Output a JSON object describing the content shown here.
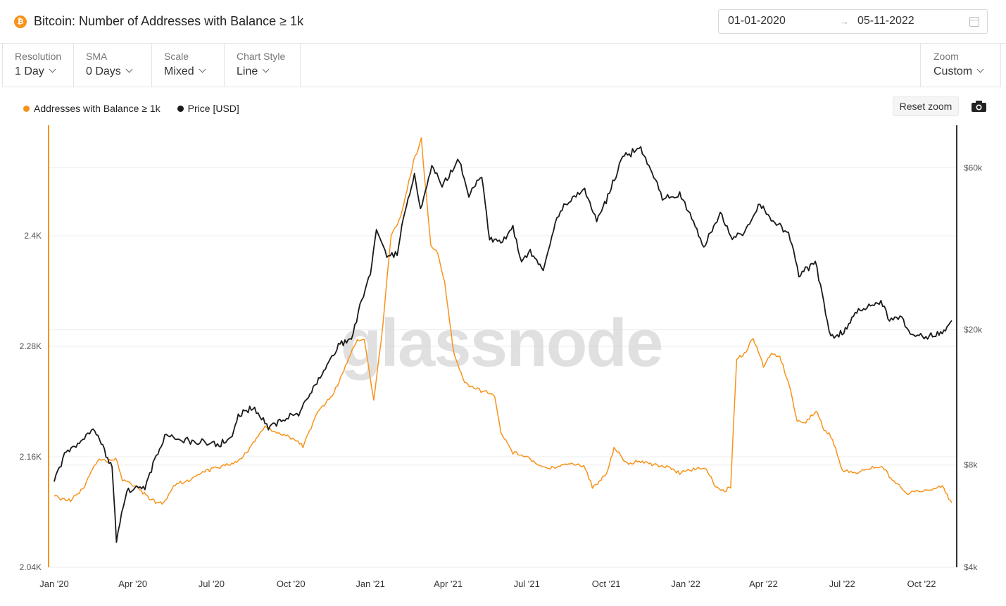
{
  "header": {
    "asset_icon": "bitcoin-icon",
    "title": "Bitcoin: Number of Addresses with Balance ≥ 1k",
    "date_start": "01-01-2020",
    "date_arrow": "→",
    "date_end": "05-11-2022"
  },
  "controls": {
    "resolution": {
      "label": "Resolution",
      "value": "1 Day"
    },
    "sma": {
      "label": "SMA",
      "value": "0 Days"
    },
    "scale": {
      "label": "Scale",
      "value": "Mixed"
    },
    "chart_style": {
      "label": "Chart Style",
      "value": "Line"
    },
    "zoom": {
      "label": "Zoom",
      "value": "Custom"
    }
  },
  "toolbar": {
    "reset_zoom": "Reset zoom",
    "camera_icon": "camera-icon"
  },
  "watermark": "glassnode",
  "colors": {
    "addresses": "#f7931a",
    "price": "#1a1a1a",
    "grid": "#ececec",
    "left_axis": "#f7931a",
    "right_axis": "#333333"
  },
  "chart_data": {
    "type": "line",
    "title": "Bitcoin: Number of Addresses with Balance ≥ 1k",
    "x_start": "2020-01-01",
    "x_end": "2022-11-05",
    "x_tick_labels": [
      "Jan '20",
      "Apr '20",
      "Jul '20",
      "Oct '20",
      "Jan '21",
      "Apr '21",
      "Jul '21",
      "Oct '21",
      "Jan '22",
      "Apr '22",
      "Jul '22",
      "Oct '22"
    ],
    "x_tick_dates": [
      "2020-01-01",
      "2020-04-01",
      "2020-07-01",
      "2020-10-01",
      "2021-01-01",
      "2021-04-01",
      "2021-07-01",
      "2021-10-01",
      "2022-01-01",
      "2022-04-01",
      "2022-07-01",
      "2022-10-01"
    ],
    "left_axis": {
      "scale": "linear",
      "min": 2040,
      "max": 2520,
      "ticks": [
        2040,
        2160,
        2280,
        2400
      ],
      "tick_labels": [
        "2.04K",
        "2.16K",
        "2.28K",
        "2.4K"
      ]
    },
    "right_axis": {
      "scale": "log",
      "min": 4000,
      "max": 80000,
      "ticks": [
        4000,
        8000,
        20000,
        60000
      ],
      "tick_labels": [
        "$4k",
        "$8k",
        "$20k",
        "$60k"
      ]
    },
    "series": [
      {
        "name": "Addresses with Balance ≥ 1k",
        "axis": "left",
        "points": [
          [
            "2020-01-01",
            2117
          ],
          [
            "2020-01-20",
            2112
          ],
          [
            "2020-02-05",
            2128
          ],
          [
            "2020-02-20",
            2157
          ],
          [
            "2020-03-05",
            2155
          ],
          [
            "2020-03-12",
            2160
          ],
          [
            "2020-03-20",
            2135
          ],
          [
            "2020-04-05",
            2128
          ],
          [
            "2020-04-20",
            2115
          ],
          [
            "2020-05-05",
            2108
          ],
          [
            "2020-05-20",
            2130
          ],
          [
            "2020-06-05",
            2135
          ],
          [
            "2020-06-25",
            2145
          ],
          [
            "2020-07-15",
            2150
          ],
          [
            "2020-08-05",
            2158
          ],
          [
            "2020-08-20",
            2178
          ],
          [
            "2020-09-01",
            2192
          ],
          [
            "2020-09-15",
            2187
          ],
          [
            "2020-10-01",
            2180
          ],
          [
            "2020-10-15",
            2172
          ],
          [
            "2020-11-01",
            2208
          ],
          [
            "2020-11-20",
            2230
          ],
          [
            "2020-12-05",
            2262
          ],
          [
            "2020-12-15",
            2285
          ],
          [
            "2020-12-25",
            2288
          ],
          [
            "2021-01-05",
            2220
          ],
          [
            "2021-01-15",
            2300
          ],
          [
            "2021-01-25",
            2400
          ],
          [
            "2021-02-05",
            2420
          ],
          [
            "2021-02-20",
            2480
          ],
          [
            "2021-03-01",
            2505
          ],
          [
            "2021-03-05",
            2460
          ],
          [
            "2021-03-12",
            2390
          ],
          [
            "2021-03-20",
            2380
          ],
          [
            "2021-03-28",
            2350
          ],
          [
            "2021-04-08",
            2270
          ],
          [
            "2021-04-20",
            2240
          ],
          [
            "2021-05-01",
            2235
          ],
          [
            "2021-05-15",
            2230
          ],
          [
            "2021-05-25",
            2225
          ],
          [
            "2021-06-01",
            2185
          ],
          [
            "2021-06-15",
            2165
          ],
          [
            "2021-07-01",
            2160
          ],
          [
            "2021-07-15",
            2150
          ],
          [
            "2021-08-01",
            2148
          ],
          [
            "2021-08-20",
            2153
          ],
          [
            "2021-09-05",
            2150
          ],
          [
            "2021-09-15",
            2128
          ],
          [
            "2021-10-01",
            2140
          ],
          [
            "2021-10-10",
            2170
          ],
          [
            "2021-10-25",
            2152
          ],
          [
            "2021-11-10",
            2155
          ],
          [
            "2021-11-25",
            2152
          ],
          [
            "2021-12-10",
            2150
          ],
          [
            "2021-12-25",
            2143
          ],
          [
            "2022-01-10",
            2146
          ],
          [
            "2022-01-25",
            2147
          ],
          [
            "2022-02-05",
            2127
          ],
          [
            "2022-02-15",
            2123
          ],
          [
            "2022-02-22",
            2127
          ],
          [
            "2022-03-01",
            2265
          ],
          [
            "2022-03-10",
            2272
          ],
          [
            "2022-03-20",
            2288
          ],
          [
            "2022-04-01",
            2258
          ],
          [
            "2022-04-10",
            2272
          ],
          [
            "2022-04-20",
            2270
          ],
          [
            "2022-05-01",
            2238
          ],
          [
            "2022-05-10",
            2200
          ],
          [
            "2022-05-20",
            2198
          ],
          [
            "2022-06-01",
            2210
          ],
          [
            "2022-06-10",
            2190
          ],
          [
            "2022-06-20",
            2180
          ],
          [
            "2022-07-01",
            2145
          ],
          [
            "2022-07-15",
            2143
          ],
          [
            "2022-08-01",
            2147
          ],
          [
            "2022-08-15",
            2150
          ],
          [
            "2022-09-01",
            2132
          ],
          [
            "2022-09-15",
            2120
          ],
          [
            "2022-10-01",
            2123
          ],
          [
            "2022-10-15",
            2125
          ],
          [
            "2022-10-25",
            2128
          ],
          [
            "2022-11-05",
            2110
          ]
        ]
      },
      {
        "name": "Price [USD]",
        "axis": "right",
        "points": [
          [
            "2020-01-01",
            7200
          ],
          [
            "2020-01-15",
            8800
          ],
          [
            "2020-02-01",
            9400
          ],
          [
            "2020-02-15",
            10300
          ],
          [
            "2020-03-01",
            8600
          ],
          [
            "2020-03-08",
            8000
          ],
          [
            "2020-03-13",
            4800
          ],
          [
            "2020-03-25",
            6700
          ],
          [
            "2020-04-15",
            6900
          ],
          [
            "2020-04-30",
            8800
          ],
          [
            "2020-05-10",
            9800
          ],
          [
            "2020-06-01",
            9500
          ],
          [
            "2020-06-20",
            9300
          ],
          [
            "2020-07-10",
            9200
          ],
          [
            "2020-07-25",
            9700
          ],
          [
            "2020-08-01",
            11300
          ],
          [
            "2020-08-20",
            11800
          ],
          [
            "2020-09-05",
            10200
          ],
          [
            "2020-09-20",
            10900
          ],
          [
            "2020-10-10",
            11400
          ],
          [
            "2020-10-25",
            13200
          ],
          [
            "2020-11-10",
            15400
          ],
          [
            "2020-11-25",
            18000
          ],
          [
            "2020-12-10",
            18800
          ],
          [
            "2020-12-20",
            23500
          ],
          [
            "2021-01-01",
            29000
          ],
          [
            "2021-01-08",
            40000
          ],
          [
            "2021-01-20",
            33000
          ],
          [
            "2021-02-01",
            33500
          ],
          [
            "2021-02-10",
            45000
          ],
          [
            "2021-02-21",
            57000
          ],
          [
            "2021-02-28",
            45000
          ],
          [
            "2021-03-13",
            61000
          ],
          [
            "2021-03-25",
            53000
          ],
          [
            "2021-04-14",
            63500
          ],
          [
            "2021-04-25",
            50000
          ],
          [
            "2021-05-10",
            57000
          ],
          [
            "2021-05-19",
            37000
          ],
          [
            "2021-06-01",
            36000
          ],
          [
            "2021-06-15",
            40000
          ],
          [
            "2021-06-25",
            32000
          ],
          [
            "2021-07-05",
            34000
          ],
          [
            "2021-07-20",
            30000
          ],
          [
            "2021-08-01",
            40000
          ],
          [
            "2021-08-15",
            47000
          ],
          [
            "2021-09-06",
            52000
          ],
          [
            "2021-09-20",
            42000
          ],
          [
            "2021-10-01",
            48000
          ],
          [
            "2021-10-20",
            65000
          ],
          [
            "2021-11-10",
            68000
          ],
          [
            "2021-11-25",
            57000
          ],
          [
            "2021-12-05",
            49000
          ],
          [
            "2021-12-25",
            50000
          ],
          [
            "2022-01-10",
            42000
          ],
          [
            "2022-01-22",
            35000
          ],
          [
            "2022-02-10",
            44000
          ],
          [
            "2022-02-24",
            37000
          ],
          [
            "2022-03-10",
            39000
          ],
          [
            "2022-03-28",
            47000
          ],
          [
            "2022-04-10",
            42000
          ],
          [
            "2022-04-30",
            38500
          ],
          [
            "2022-05-12",
            29000
          ],
          [
            "2022-05-31",
            31500
          ],
          [
            "2022-06-18",
            19000
          ],
          [
            "2022-07-01",
            19500
          ],
          [
            "2022-07-20",
            23000
          ],
          [
            "2022-08-15",
            24200
          ],
          [
            "2022-08-25",
            21500
          ],
          [
            "2022-09-10",
            21500
          ],
          [
            "2022-09-20",
            19000
          ],
          [
            "2022-10-10",
            19200
          ],
          [
            "2022-10-25",
            19500
          ],
          [
            "2022-11-05",
            21300
          ]
        ]
      }
    ]
  },
  "legend": {
    "addresses_label": "Addresses with Balance ≥ 1k",
    "price_label": "Price [USD]",
    "position": "top-left"
  }
}
